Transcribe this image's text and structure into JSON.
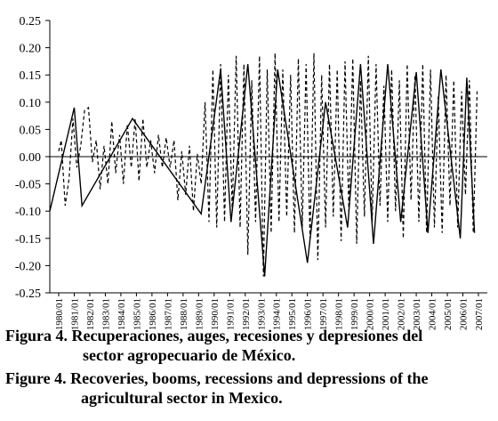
{
  "chart_data": {
    "type": "line",
    "title": "",
    "xlabel": "",
    "ylabel": "",
    "ylim": [
      -0.25,
      0.25
    ],
    "yticks": [
      0.25,
      0.2,
      0.15,
      0.1,
      0.05,
      0.0,
      -0.05,
      -0.1,
      -0.15,
      -0.2,
      -0.25
    ],
    "ytick_labels": [
      "0.25",
      "0.20",
      "0.15",
      "0.10",
      "0.05",
      "0.00",
      "-0.05",
      "-0.10",
      "-0.15",
      "-0.20",
      "-0.25"
    ],
    "x_start": "1980/01",
    "x_end": "2007/01",
    "xtick_labels": [
      "1980/01",
      "1981/01",
      "1982/01",
      "1983/01",
      "1984/01",
      "1985/01",
      "1986/01",
      "1987/01",
      "1988/01",
      "1989/01",
      "1990/01",
      "1991/01",
      "1992/01",
      "1993/01",
      "1994/01",
      "1995/01",
      "1996/01",
      "1997/01",
      "1998/01",
      "1999/01",
      "2000/01",
      "2001/01",
      "2002/01",
      "2003/01",
      "2004/01",
      "2005/01",
      "2006/01",
      "2007/01"
    ],
    "series": [
      {
        "style": "solid",
        "x": [
          "1979/01",
          "1981/01",
          "1981/07",
          "1984/10",
          "1989/03",
          "1990/06",
          "1991/02",
          "1992/03",
          "1993/04",
          "1994/02",
          "1996/01",
          "1997/03",
          "1998/08",
          "1999/06",
          "2000/04",
          "2001/03",
          "2002/01",
          "2003/01",
          "2003/10",
          "2004/08",
          "2005/11",
          "2006/04",
          "2006/10"
        ],
        "y": [
          -0.1,
          0.09,
          -0.09,
          0.07,
          -0.105,
          0.16,
          -0.12,
          0.17,
          -0.22,
          0.16,
          -0.195,
          0.1,
          -0.13,
          0.17,
          -0.16,
          0.17,
          -0.12,
          0.155,
          -0.14,
          0.16,
          -0.15,
          0.145,
          -0.14
        ]
      },
      {
        "style": "dashed",
        "x": [
          "1980/01",
          "1980/03",
          "1980/06",
          "1980/09",
          "1980/12",
          "1981/03",
          "1981/06",
          "1981/09",
          "1981/12",
          "1982/03",
          "1982/06",
          "1982/09",
          "1982/12",
          "1983/03",
          "1983/06",
          "1983/09",
          "1983/12",
          "1984/03",
          "1984/06",
          "1984/09",
          "1984/12",
          "1985/03",
          "1985/06",
          "1985/09",
          "1985/12",
          "1986/03",
          "1986/06",
          "1986/09",
          "1986/12",
          "1987/03",
          "1987/06",
          "1987/09",
          "1987/12",
          "1988/03",
          "1988/06",
          "1988/09",
          "1988/12",
          "1989/03",
          "1989/06",
          "1989/09",
          "1989/12",
          "1990/03",
          "1990/06",
          "1990/09",
          "1990/12",
          "1991/03",
          "1991/06",
          "1991/09",
          "1991/12",
          "1992/03",
          "1992/06",
          "1992/09",
          "1992/12",
          "1993/03",
          "1993/06",
          "1993/09",
          "1993/12",
          "1994/03",
          "1994/06",
          "1994/09",
          "1994/12",
          "1995/03",
          "1995/06",
          "1995/09",
          "1995/12",
          "1996/03",
          "1996/06",
          "1996/09",
          "1996/12",
          "1997/03",
          "1997/06",
          "1997/09",
          "1997/12",
          "1998/03",
          "1998/06",
          "1998/09",
          "1998/12",
          "1999/03",
          "1999/06",
          "1999/09",
          "1999/12",
          "2000/03",
          "2000/06",
          "2000/09",
          "2000/12",
          "2001/03",
          "2001/06",
          "2001/09",
          "2001/12",
          "2002/03",
          "2002/06",
          "2002/09",
          "2002/12",
          "2003/03",
          "2003/06",
          "2003/09",
          "2003/12",
          "2004/03",
          "2004/06",
          "2004/09",
          "2004/12",
          "2005/03",
          "2005/06",
          "2005/09",
          "2005/12",
          "2006/03",
          "2006/06",
          "2006/09",
          "2006/12"
        ],
        "y": [
          0.01,
          0.03,
          -0.09,
          -0.04,
          0.07,
          -0.02,
          0.02,
          0.085,
          0.09,
          -0.01,
          0.03,
          -0.06,
          0.02,
          -0.05,
          0.065,
          -0.03,
          0.04,
          -0.05,
          0.06,
          -0.02,
          0.07,
          -0.045,
          0.07,
          -0.02,
          0.03,
          -0.03,
          0.04,
          -0.02,
          0.035,
          -0.02,
          0.03,
          -0.08,
          0.01,
          -0.07,
          0.02,
          -0.1,
          0.005,
          -0.05,
          0.1,
          -0.12,
          0.16,
          -0.13,
          0.17,
          -0.12,
          0.15,
          -0.1,
          0.185,
          -0.13,
          0.17,
          -0.18,
          0.14,
          -0.12,
          0.185,
          -0.22,
          0.16,
          -0.14,
          0.19,
          -0.12,
          0.16,
          -0.11,
          0.15,
          -0.14,
          0.18,
          -0.13,
          0.17,
          -0.15,
          0.19,
          -0.19,
          0.15,
          -0.13,
          0.17,
          -0.11,
          0.16,
          -0.155,
          0.175,
          -0.1,
          0.18,
          -0.16,
          0.14,
          -0.11,
          0.185,
          -0.12,
          0.17,
          -0.09,
          0.13,
          -0.12,
          0.16,
          -0.1,
          0.14,
          -0.15,
          0.17,
          -0.08,
          0.15,
          -0.12,
          0.17,
          -0.14,
          0.16,
          -0.13,
          0.11,
          -0.14,
          0.15,
          -0.09,
          0.14,
          -0.13,
          0.12,
          -0.07,
          0.14,
          -0.14,
          0.12
        ]
      }
    ]
  },
  "caption": {
    "es_line1": "Figura 4. Recuperaciones, auges, recesiones y depresiones del",
    "es_line2": "sector agropecuario de México.",
    "en_line1": "Figure 4. Recoveries, booms, recessions and depressions of the",
    "en_line2": "agricultural sector in Mexico."
  }
}
